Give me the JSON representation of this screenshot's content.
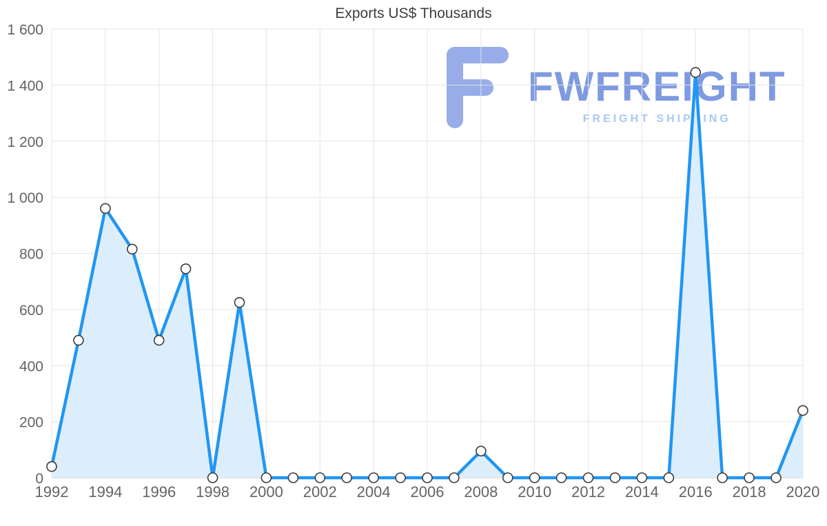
{
  "title": "Exports US$ Thousands",
  "watermark": {
    "brand": "FWFREIGHT",
    "tagline": "FREIGHT SHIPPING",
    "brand_color": "#7e9ae0",
    "tagline_color": "#aac8f1",
    "logo_color": "#97ace9"
  },
  "chart_data": {
    "type": "area",
    "title": "Exports US$ Thousands",
    "xlabel": "",
    "ylabel": "",
    "x": [
      1992,
      1993,
      1994,
      1995,
      1996,
      1997,
      1998,
      1999,
      2000,
      2001,
      2002,
      2003,
      2004,
      2005,
      2006,
      2007,
      2008,
      2009,
      2010,
      2011,
      2012,
      2013,
      2014,
      2015,
      2016,
      2017,
      2018,
      2019,
      2020
    ],
    "values": [
      40,
      490,
      960,
      815,
      490,
      745,
      0,
      625,
      0,
      0,
      0,
      0,
      0,
      0,
      0,
      0,
      95,
      0,
      0,
      0,
      0,
      0,
      0,
      0,
      1445,
      0,
      0,
      0,
      240
    ],
    "ylim": [
      0,
      1600
    ],
    "y_ticks": [
      0,
      200,
      400,
      600,
      800,
      1000,
      1200,
      1400,
      1600
    ],
    "y_tick_labels": [
      "0",
      "200",
      "400",
      "600",
      "800",
      "1 000",
      "1 200",
      "1 400",
      "1 600"
    ],
    "x_ticks": [
      1992,
      1994,
      1996,
      1998,
      2000,
      2002,
      2004,
      2006,
      2008,
      2010,
      2012,
      2014,
      2016,
      2018,
      2020
    ],
    "x_tick_labels": [
      "1992",
      "1994",
      "1996",
      "1998",
      "2000",
      "2002",
      "2004",
      "2006",
      "2008",
      "2010",
      "2012",
      "2014",
      "2016",
      "2018",
      "2020"
    ],
    "grid": true,
    "legend": "none",
    "colors": {
      "line": "#2196f3",
      "area": "#dcEEfc",
      "marker_fill": "#ffffff",
      "marker_stroke": "#3b3b3b",
      "grid": "#e4e4e4",
      "axis": "#c2c2c2",
      "tick_text": "#636363",
      "title_text": "#3d3d3d"
    }
  }
}
